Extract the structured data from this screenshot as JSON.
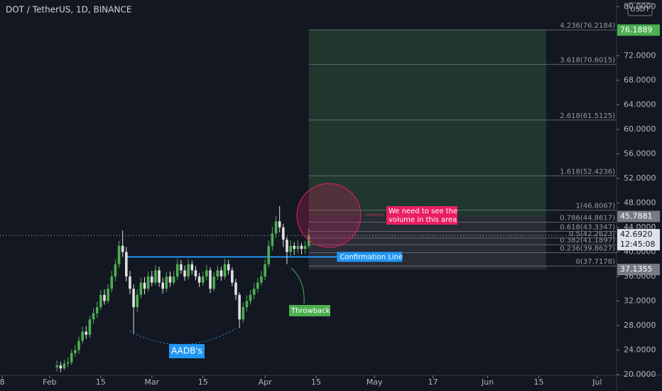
{
  "chart_data": {
    "type": "candlestick",
    "title": "DOT / TetherUS, 1D, BINANCE",
    "currency": "USDT",
    "x": [
      33,
      34,
      35,
      36,
      37,
      38,
      39,
      40,
      41,
      42,
      43,
      44,
      45,
      46,
      47,
      48,
      49,
      50,
      51,
      52,
      53,
      54,
      55,
      56,
      57,
      58,
      59,
      60,
      61,
      62,
      63,
      64,
      65,
      66,
      67,
      68,
      69,
      70,
      71,
      72,
      73,
      74,
      75,
      76,
      77,
      78,
      79,
      80,
      81,
      82,
      83,
      84,
      85,
      86,
      87,
      88,
      89,
      90,
      91,
      92,
      93,
      94,
      95,
      96,
      97,
      98,
      99,
      100,
      101,
      102
    ],
    "candles": [
      [
        21.2,
        22.3,
        20.5,
        21.5
      ],
      [
        21.5,
        22.1,
        20.4,
        21
      ],
      [
        21,
        22.4,
        20.7,
        21.8
      ],
      [
        21.8,
        22.8,
        21.2,
        22
      ],
      [
        22,
        24.1,
        21.6,
        23.5
      ],
      [
        23.5,
        24.8,
        22.9,
        24
      ],
      [
        24,
        26.2,
        23.4,
        25.5
      ],
      [
        25.5,
        27.8,
        25,
        27
      ],
      [
        27,
        27.9,
        25.8,
        26.5
      ],
      [
        26.5,
        29.6,
        26,
        29
      ],
      [
        29,
        30.8,
        28.3,
        30
      ],
      [
        30,
        31.9,
        29.2,
        31
      ],
      [
        31,
        33.8,
        30.5,
        33
      ],
      [
        33,
        33.9,
        31.4,
        32
      ],
      [
        32,
        34.8,
        31.6,
        34
      ],
      [
        34,
        36.9,
        33.4,
        36
      ],
      [
        36,
        38.8,
        35.2,
        38
      ],
      [
        38,
        41.8,
        37.4,
        41
      ],
      [
        41,
        43.5,
        39.2,
        40
      ],
      [
        40,
        40.8,
        35.2,
        36
      ],
      [
        36,
        36.9,
        33.1,
        34
      ],
      [
        34,
        34.7,
        26.6,
        31
      ],
      [
        31,
        33.9,
        30.2,
        33
      ],
      [
        33,
        35.8,
        32.4,
        35
      ],
      [
        35,
        35.9,
        33.1,
        34
      ],
      [
        34,
        36.8,
        33.5,
        36
      ],
      [
        36,
        36.9,
        34.4,
        35
      ],
      [
        35,
        37.8,
        34.6,
        37
      ],
      [
        37,
        37.6,
        34.3,
        35
      ],
      [
        35,
        35.8,
        33.2,
        34
      ],
      [
        34,
        36.7,
        33.5,
        36
      ],
      [
        36,
        36.8,
        34.3,
        35
      ],
      [
        35,
        36.9,
        34.6,
        36
      ],
      [
        36,
        38.9,
        35.4,
        38
      ],
      [
        38,
        38.7,
        36.4,
        37
      ],
      [
        37,
        37.8,
        35.3,
        36
      ],
      [
        36,
        38.8,
        35.5,
        38
      ],
      [
        38,
        38.6,
        36.3,
        37
      ],
      [
        37,
        37.7,
        35.4,
        36
      ],
      [
        36,
        36.6,
        34.3,
        35
      ],
      [
        35,
        36.8,
        34.5,
        36
      ],
      [
        36,
        37.9,
        35.4,
        37
      ],
      [
        37,
        37.5,
        33.3,
        34
      ],
      [
        34,
        36.7,
        33.6,
        36
      ],
      [
        36,
        37.8,
        35.4,
        37
      ],
      [
        37,
        37.6,
        35.3,
        36
      ],
      [
        36,
        38.9,
        35.5,
        38
      ],
      [
        38,
        38.7,
        36.3,
        37
      ],
      [
        37,
        37.5,
        34.4,
        35
      ],
      [
        35,
        35.6,
        32.2,
        33
      ],
      [
        33,
        33.4,
        27.6,
        29
      ],
      [
        29,
        31.8,
        28.4,
        31
      ],
      [
        31,
        32.9,
        30.3,
        32
      ],
      [
        32,
        33.8,
        31.4,
        33
      ],
      [
        33,
        34.9,
        32.3,
        34
      ],
      [
        34,
        35.8,
        33.4,
        35
      ],
      [
        35,
        36.9,
        34.5,
        36
      ],
      [
        36,
        38.8,
        35.4,
        38
      ],
      [
        38,
        41.9,
        37.5,
        41
      ],
      [
        41,
        44.1,
        40.2,
        43
      ],
      [
        43,
        45.9,
        42.3,
        45
      ],
      [
        45,
        47.5,
        43.2,
        44
      ],
      [
        44,
        44.6,
        40.8,
        42
      ],
      [
        42,
        42.5,
        38,
        40
      ],
      [
        40,
        41.9,
        39.2,
        41
      ],
      [
        41,
        41.6,
        39.5,
        40.5
      ],
      [
        40.5,
        41.9,
        39.8,
        41
      ],
      [
        41,
        41.5,
        39.6,
        40.5
      ],
      [
        40.5,
        41.8,
        39.7,
        41
      ],
      [
        41,
        43.9,
        40.6,
        42.692
      ]
    ],
    "up_color": "#4caf50",
    "down_color": "#e0e0e0",
    "xlim": [
      17.4,
      186.3
    ],
    "xticks": [
      {
        "value": 18,
        "label": "8"
      },
      {
        "value": 31,
        "label": "Feb"
      },
      {
        "value": 45,
        "label": "15"
      },
      {
        "value": 59,
        "label": "Mar"
      },
      {
        "value": 73,
        "label": "15"
      },
      {
        "value": 90,
        "label": "Apr"
      },
      {
        "value": 104,
        "label": "15"
      },
      {
        "value": 120,
        "label": "May"
      },
      {
        "value": 136,
        "label": "17"
      },
      {
        "value": 151,
        "label": "Jun"
      },
      {
        "value": 165,
        "label": "15"
      },
      {
        "value": 181,
        "label": "Jul"
      }
    ],
    "ylim": [
      19.87,
      81.1
    ],
    "yticks": [
      {
        "value": 20,
        "label": "20.0000"
      },
      {
        "value": 24,
        "label": "24.0000"
      },
      {
        "value": 28,
        "label": "28.0000"
      },
      {
        "value": 32,
        "label": "32.0000"
      },
      {
        "value": 36,
        "label": "36.0000"
      },
      {
        "value": 40,
        "label": "40.0000"
      },
      {
        "value": 44,
        "label": "44.0000"
      },
      {
        "value": 48,
        "label": "48.0000"
      },
      {
        "value": 52,
        "label": "52.0000"
      },
      {
        "value": 56,
        "label": "56.0000"
      },
      {
        "value": 60,
        "label": "60.0000"
      },
      {
        "value": 64,
        "label": "64.0000"
      },
      {
        "value": 68,
        "label": "68.0000"
      },
      {
        "value": 72,
        "label": "72.0000"
      },
      {
        "value": 80,
        "label": "80.0000"
      }
    ],
    "fib": {
      "x": [
        102,
        167
      ],
      "levels": [
        {
          "value": 37.7178,
          "label": "0(37.7178)"
        },
        {
          "value": 39.8627,
          "label": "0.236(39.8627)"
        },
        {
          "value": 41.1897,
          "label": "0.382(41.1897)"
        },
        {
          "value": 42.2623,
          "label": "0.5(42.2623)"
        },
        {
          "value": 43.3347,
          "label": "0.618(43.3347)"
        },
        {
          "value": 44.8617,
          "label": "0.786(44.8617)"
        },
        {
          "value": 46.8067,
          "label": "1(46.8067)"
        },
        {
          "value": 52.4236,
          "label": "1.618(52.4236)"
        },
        {
          "value": 61.5125,
          "label": "2.618(61.5125)"
        },
        {
          "value": 70.6015,
          "label": "3.618(70.6015)"
        },
        {
          "value": 76.2184,
          "label": "4.236(76.2184)"
        }
      ]
    },
    "position": {
      "target": 76.1889,
      "entry": 45.7881,
      "stop": 37.1355
    },
    "last_price": {
      "value": 42.692,
      "label": "42.6920",
      "countdown": "12:45:08"
    },
    "confirmation": {
      "value": 39.2,
      "x": [
        52,
        109.7
      ],
      "label": "Confirmation Line"
    },
    "annotations": {
      "volume": [
        "We need to see the",
        "volume in this area"
      ],
      "throwback": "Throwback",
      "pattern": "AADB's"
    }
  }
}
